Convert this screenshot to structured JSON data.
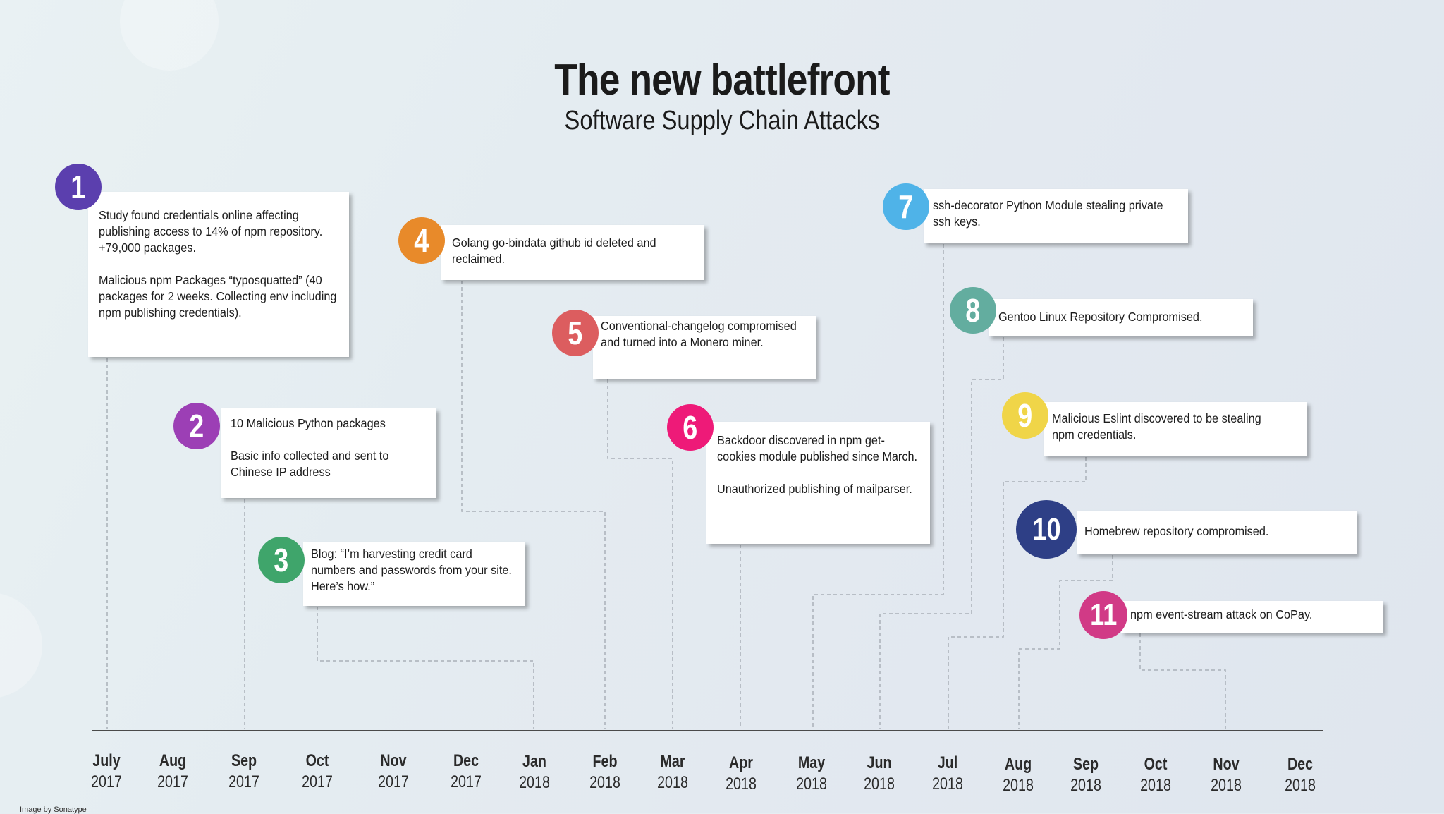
{
  "title": "The new battlefront",
  "subtitle": "Software Supply Chain Attacks",
  "credit": "Image by Sonatype",
  "events": [
    {
      "num": "1",
      "color": "#5b3fae",
      "text": "Study found credentials online affecting publishing access to 14% of npm repository. +79,000 packages.\n\nMalicious npm Packages “typosquatted” (40 packages for 2 weeks. Collecting env including npm publishing credentials)."
    },
    {
      "num": "2",
      "color": "#9c3fb5",
      "text": "10 Malicious Python packages\n\nBasic info collected and sent to Chinese IP address"
    },
    {
      "num": "3",
      "color": "#3fa56b",
      "text": "Blog: “I’m harvesting credit card numbers and passwords from your site. Here’s how.”"
    },
    {
      "num": "4",
      "color": "#e88a2a",
      "text": "Golang go-bindata github id deleted and reclaimed."
    },
    {
      "num": "5",
      "color": "#dc5d5f",
      "text": "Conventional-changelog compromised and turned into a Monero miner."
    },
    {
      "num": "6",
      "color": "#ee1a78",
      "text": "Backdoor discovered in npm get-cookies module published since March.\n\nUnauthorized publishing of mailparser."
    },
    {
      "num": "7",
      "color": "#4fb3e8",
      "text": "ssh-decorator Python Module stealing private ssh keys."
    },
    {
      "num": "8",
      "color": "#63ad9f",
      "text": "Gentoo Linux Repository Compromised."
    },
    {
      "num": "9",
      "color": "#f0d548",
      "text": "Malicious Eslint discovered to be stealing npm credentials."
    },
    {
      "num": "10",
      "color": "#2e3f86",
      "text": "Homebrew repository compromised."
    },
    {
      "num": "11",
      "color": "#d13a86",
      "text": "npm event-stream attack on CoPay."
    }
  ],
  "months": [
    {
      "m": "July",
      "y": "2017"
    },
    {
      "m": "Aug",
      "y": "2017"
    },
    {
      "m": "Sep",
      "y": "2017"
    },
    {
      "m": "Oct",
      "y": "2017"
    },
    {
      "m": "Nov",
      "y": "2017"
    },
    {
      "m": "Dec",
      "y": "2017"
    },
    {
      "m": "Jan",
      "y": "2018"
    },
    {
      "m": "Feb",
      "y": "2018"
    },
    {
      "m": "Mar",
      "y": "2018"
    },
    {
      "m": "Apr",
      "y": "2018"
    },
    {
      "m": "May",
      "y": "2018"
    },
    {
      "m": "Jun",
      "y": "2018"
    },
    {
      "m": "Jul",
      "y": "2018"
    },
    {
      "m": "Aug",
      "y": "2018"
    },
    {
      "m": "Sep",
      "y": "2018"
    },
    {
      "m": "Oct",
      "y": "2018"
    },
    {
      "m": "Nov",
      "y": "2018"
    },
    {
      "m": "Dec",
      "y": "2018"
    }
  ]
}
